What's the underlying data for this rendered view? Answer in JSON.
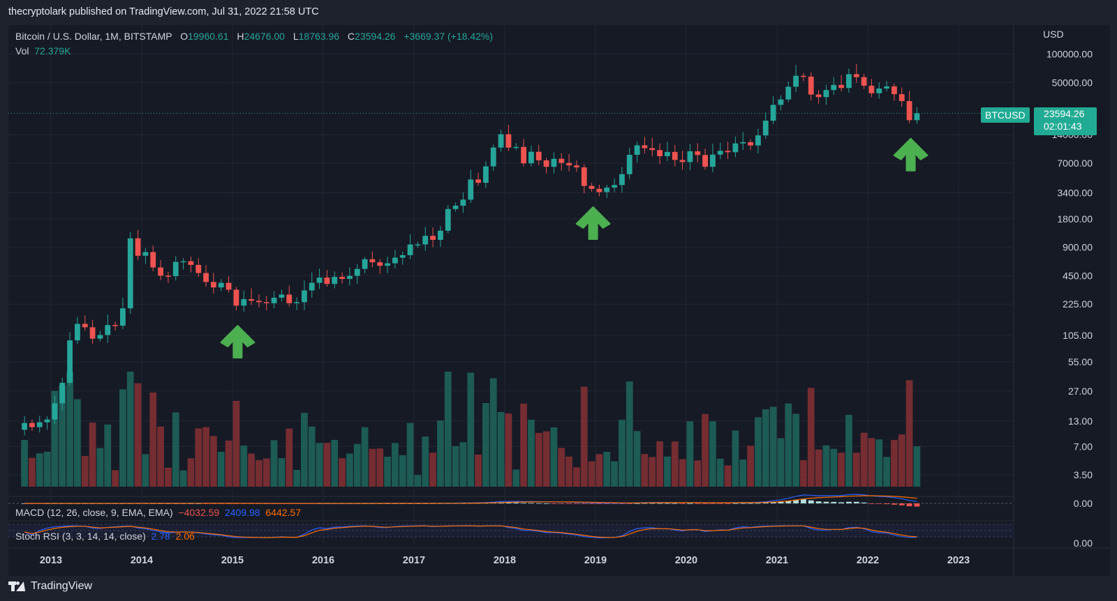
{
  "header": {
    "publisher": "thecryptolark published on TradingView.com, Jul 31, 2022 21:58 UTC"
  },
  "symbol": {
    "title": "Bitcoin / U.S. Dollar, 1M, BITSTAMP",
    "o_label": "O",
    "o": "19960.61",
    "h_label": "H",
    "h": "24676.00",
    "l_label": "L",
    "l": "18763.96",
    "c_label": "C",
    "c": "23594.26",
    "change": "+3669.37 (+18.42%)",
    "vol_label": "Vol",
    "vol": "72.379K",
    "tag": "BTCUSD",
    "last_price": "23594.26",
    "countdown": "02:01:43"
  },
  "currency": "USD",
  "indicators": {
    "macd": {
      "label": "MACD (12, 26, close, 9, EMA, EMA)",
      "hist": "−4032.59",
      "macd": "2409.98",
      "signal": "6442.57"
    },
    "stoch": {
      "label": "Stoch RSI (3, 3, 14, 14, close)",
      "k": "2.78",
      "d": "2.06"
    }
  },
  "brand": "TradingView",
  "colors": {
    "up": "#26a69a",
    "down": "#ef5350",
    "arrow": "#4caf50",
    "macd": "#2962ff",
    "signal": "#ff6d00",
    "bg": "#161a25"
  },
  "chart_data": {
    "type": "candlestick",
    "scale": "log",
    "price_ticks": [
      "100000.00",
      "50000.00",
      "14000.00",
      "7000.00",
      "3400.00",
      "1800.00",
      "900.00",
      "450.00",
      "225.00",
      "105.00",
      "55.00",
      "27.00",
      "13.00",
      "7.00",
      "3.50"
    ],
    "indicator_ticks": [
      "0.00",
      "0.00"
    ],
    "x_ticks": [
      "2013",
      "2014",
      "2015",
      "2016",
      "2017",
      "2018",
      "2019",
      "2020",
      "2021",
      "2022",
      "2023"
    ],
    "annotations": [
      {
        "type": "arrow-up",
        "date": "2015-01"
      },
      {
        "type": "arrow-up",
        "date": "2018-12"
      },
      {
        "type": "arrow-up",
        "date": "2022-06"
      }
    ],
    "closes": [
      {
        "d": "2012-09",
        "c": 12.4
      },
      {
        "d": "2012-10",
        "c": 11.2
      },
      {
        "d": "2012-11",
        "c": 12.6
      },
      {
        "d": "2012-12",
        "c": 13.5
      },
      {
        "d": "2013-01",
        "c": 20
      },
      {
        "d": "2013-02",
        "c": 33
      },
      {
        "d": "2013-03",
        "c": 93
      },
      {
        "d": "2013-04",
        "c": 139
      },
      {
        "d": "2013-05",
        "c": 128
      },
      {
        "d": "2013-06",
        "c": 97
      },
      {
        "d": "2013-07",
        "c": 106
      },
      {
        "d": "2013-08",
        "c": 135
      },
      {
        "d": "2013-09",
        "c": 133
      },
      {
        "d": "2013-10",
        "c": 203
      },
      {
        "d": "2013-11",
        "c": 1120
      },
      {
        "d": "2013-12",
        "c": 732
      },
      {
        "d": "2014-01",
        "c": 800
      },
      {
        "d": "2014-02",
        "c": 550
      },
      {
        "d": "2014-03",
        "c": 450
      },
      {
        "d": "2014-04",
        "c": 445
      },
      {
        "d": "2014-05",
        "c": 630
      },
      {
        "d": "2014-06",
        "c": 640
      },
      {
        "d": "2014-07",
        "c": 585
      },
      {
        "d": "2014-08",
        "c": 480
      },
      {
        "d": "2014-09",
        "c": 386
      },
      {
        "d": "2014-10",
        "c": 338
      },
      {
        "d": "2014-11",
        "c": 378
      },
      {
        "d": "2014-12",
        "c": 320
      },
      {
        "d": "2015-01",
        "c": 217
      },
      {
        "d": "2015-02",
        "c": 254
      },
      {
        "d": "2015-03",
        "c": 244
      },
      {
        "d": "2015-04",
        "c": 236
      },
      {
        "d": "2015-05",
        "c": 230
      },
      {
        "d": "2015-06",
        "c": 263
      },
      {
        "d": "2015-07",
        "c": 284
      },
      {
        "d": "2015-08",
        "c": 230
      },
      {
        "d": "2015-09",
        "c": 236
      },
      {
        "d": "2015-10",
        "c": 314
      },
      {
        "d": "2015-11",
        "c": 378
      },
      {
        "d": "2015-12",
        "c": 430
      },
      {
        "d": "2016-01",
        "c": 368
      },
      {
        "d": "2016-02",
        "c": 437
      },
      {
        "d": "2016-03",
        "c": 416
      },
      {
        "d": "2016-04",
        "c": 448
      },
      {
        "d": "2016-05",
        "c": 531
      },
      {
        "d": "2016-06",
        "c": 673
      },
      {
        "d": "2016-07",
        "c": 624
      },
      {
        "d": "2016-08",
        "c": 573
      },
      {
        "d": "2016-09",
        "c": 609
      },
      {
        "d": "2016-10",
        "c": 698
      },
      {
        "d": "2016-11",
        "c": 742
      },
      {
        "d": "2016-12",
        "c": 963
      },
      {
        "d": "2017-01",
        "c": 965
      },
      {
        "d": "2017-02",
        "c": 1189
      },
      {
        "d": "2017-03",
        "c": 1079
      },
      {
        "d": "2017-04",
        "c": 1348
      },
      {
        "d": "2017-05",
        "c": 2287
      },
      {
        "d": "2017-06",
        "c": 2480
      },
      {
        "d": "2017-07",
        "c": 2875
      },
      {
        "d": "2017-08",
        "c": 4703
      },
      {
        "d": "2017-09",
        "c": 4338
      },
      {
        "d": "2017-10",
        "c": 6468
      },
      {
        "d": "2017-11",
        "c": 10233
      },
      {
        "d": "2017-12",
        "c": 14156
      },
      {
        "d": "2018-01",
        "c": 10221
      },
      {
        "d": "2018-02",
        "c": 10397
      },
      {
        "d": "2018-03",
        "c": 6973
      },
      {
        "d": "2018-04",
        "c": 9240
      },
      {
        "d": "2018-05",
        "c": 7494
      },
      {
        "d": "2018-06",
        "c": 6404
      },
      {
        "d": "2018-07",
        "c": 7780
      },
      {
        "d": "2018-08",
        "c": 7037
      },
      {
        "d": "2018-09",
        "c": 6625
      },
      {
        "d": "2018-10",
        "c": 6317
      },
      {
        "d": "2018-11",
        "c": 4017
      },
      {
        "d": "2018-12",
        "c": 3742
      },
      {
        "d": "2019-01",
        "c": 3457
      },
      {
        "d": "2019-02",
        "c": 3854
      },
      {
        "d": "2019-03",
        "c": 4105
      },
      {
        "d": "2019-04",
        "c": 5350
      },
      {
        "d": "2019-05",
        "c": 8574
      },
      {
        "d": "2019-06",
        "c": 10817
      },
      {
        "d": "2019-07",
        "c": 10085
      },
      {
        "d": "2019-08",
        "c": 9631
      },
      {
        "d": "2019-09",
        "c": 8294
      },
      {
        "d": "2019-10",
        "c": 9199
      },
      {
        "d": "2019-11",
        "c": 7569
      },
      {
        "d": "2019-12",
        "c": 7194
      },
      {
        "d": "2020-01",
        "c": 9350
      },
      {
        "d": "2020-02",
        "c": 8543
      },
      {
        "d": "2020-03",
        "c": 6410
      },
      {
        "d": "2020-04",
        "c": 8625
      },
      {
        "d": "2020-05",
        "c": 9454
      },
      {
        "d": "2020-06",
        "c": 9138
      },
      {
        "d": "2020-07",
        "c": 11323
      },
      {
        "d": "2020-08",
        "c": 11680
      },
      {
        "d": "2020-09",
        "c": 10784
      },
      {
        "d": "2020-10",
        "c": 13781
      },
      {
        "d": "2020-11",
        "c": 19698
      },
      {
        "d": "2020-12",
        "c": 28990
      },
      {
        "d": "2021-01",
        "c": 33114
      },
      {
        "d": "2021-02",
        "c": 45137
      },
      {
        "d": "2021-03",
        "c": 58918
      },
      {
        "d": "2021-04",
        "c": 57750
      },
      {
        "d": "2021-05",
        "c": 37332
      },
      {
        "d": "2021-06",
        "c": 35041
      },
      {
        "d": "2021-07",
        "c": 41626
      },
      {
        "d": "2021-08",
        "c": 47166
      },
      {
        "d": "2021-09",
        "c": 43791
      },
      {
        "d": "2021-10",
        "c": 61318
      },
      {
        "d": "2021-11",
        "c": 57005
      },
      {
        "d": "2021-12",
        "c": 46306
      },
      {
        "d": "2022-01",
        "c": 38483
      },
      {
        "d": "2022-02",
        "c": 43193
      },
      {
        "d": "2022-03",
        "c": 45538
      },
      {
        "d": "2022-04",
        "c": 37644
      },
      {
        "d": "2022-05",
        "c": 31792
      },
      {
        "d": "2022-06",
        "c": 19961
      },
      {
        "d": "2022-07",
        "c": 23594
      }
    ]
  }
}
